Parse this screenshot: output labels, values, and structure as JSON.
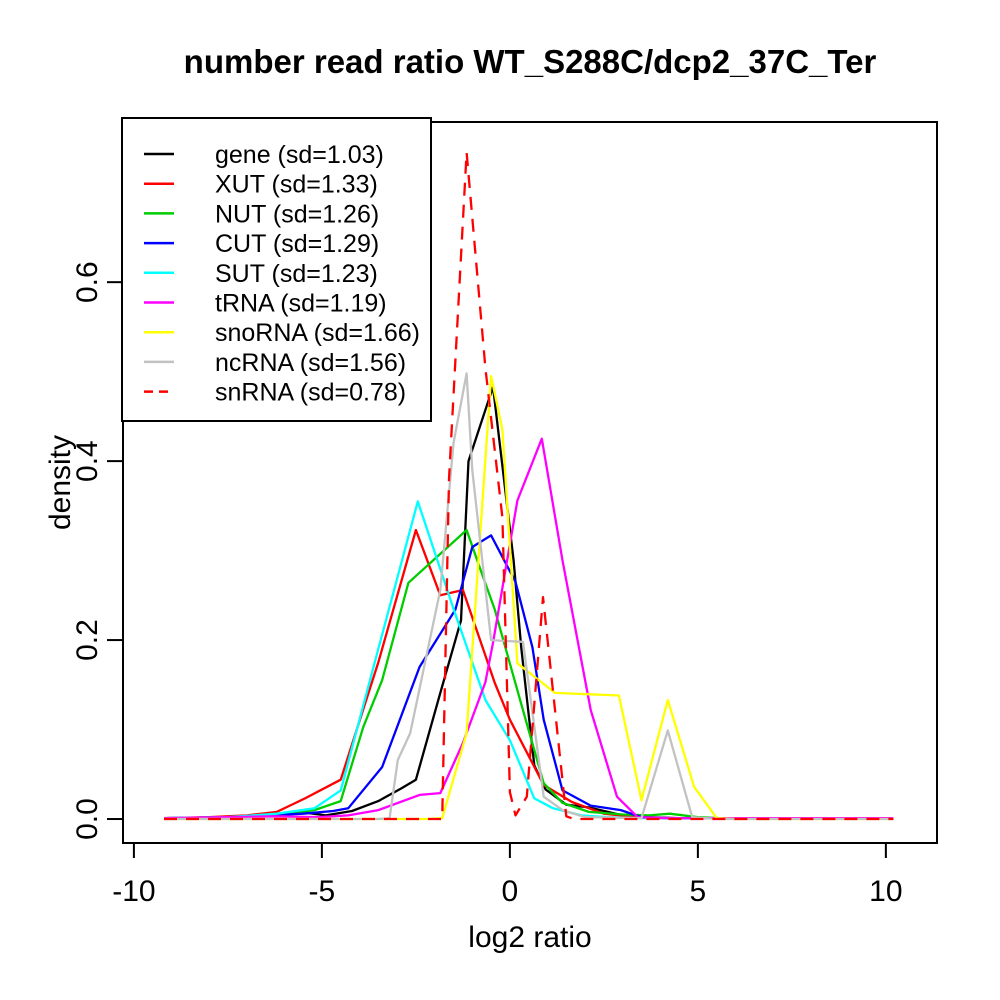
{
  "figure": {
    "background": "#ffffff",
    "border_color": "#000000"
  },
  "chart_data": {
    "type": "line",
    "title": "number read ratio WT_S288C/dcp2_37C_Ter",
    "xlabel": "log2 ratio",
    "ylabel": "density",
    "xlim": [
      -10.29,
      11.36
    ],
    "ylim": [
      -0.0268,
      0.779
    ],
    "x_ticks": [
      -10,
      -5,
      0,
      5,
      10
    ],
    "x_tick_labels": [
      "-10",
      "-5",
      "0",
      "5",
      "10"
    ],
    "y_ticks": [
      0.0,
      0.2,
      0.4,
      0.6
    ],
    "y_tick_labels": [
      "0.0",
      "0.2",
      "0.4",
      "0.6"
    ],
    "grid": false,
    "legend_position": "top-left",
    "series": [
      {
        "name": "gene",
        "label": "gene (sd=1.03)",
        "color": "#000000",
        "dashed": false,
        "points": [
          [
            -9.2,
            0.001
          ],
          [
            -8.2,
            0.001
          ],
          [
            -7.2,
            0.003
          ],
          [
            -6.2,
            0.005
          ],
          [
            -5.4,
            0.007
          ],
          [
            -4.9,
            0.004
          ],
          [
            -4.2,
            0.009
          ],
          [
            -3.5,
            0.02
          ],
          [
            -2.9,
            0.034
          ],
          [
            -2.5,
            0.044
          ],
          [
            -1.85,
            0.141
          ],
          [
            -1.3,
            0.222
          ],
          [
            -1.1,
            0.4
          ],
          [
            -0.45,
            0.483
          ],
          [
            0.1,
            0.289
          ],
          [
            0.3,
            0.192
          ],
          [
            0.65,
            0.06
          ],
          [
            0.95,
            0.033
          ],
          [
            1.5,
            0.016
          ],
          [
            2.1,
            0.013
          ],
          [
            2.9,
            0.005
          ],
          [
            3.6,
            0.002
          ],
          [
            4.5,
            0.001
          ],
          [
            10.2,
            0.001
          ]
        ]
      },
      {
        "name": "XUT",
        "label": "XUT (sd=1.33)",
        "color": "#FF0000",
        "dashed": false,
        "points": [
          [
            -9.2,
            0.001
          ],
          [
            -8,
            0.002
          ],
          [
            -7,
            0.004
          ],
          [
            -6.2,
            0.008
          ],
          [
            -5.45,
            0.023
          ],
          [
            -4.5,
            0.044
          ],
          [
            -3.5,
            0.175
          ],
          [
            -2.5,
            0.323
          ],
          [
            -1.85,
            0.25
          ],
          [
            -1.25,
            0.256
          ],
          [
            -0.4,
            0.152
          ],
          [
            0,
            0.111
          ],
          [
            0.9,
            0.038
          ],
          [
            1.65,
            0.019
          ],
          [
            2.5,
            0.006
          ],
          [
            3.2,
            0.003
          ],
          [
            4,
            0.001
          ],
          [
            10.2,
            0.001
          ]
        ]
      },
      {
        "name": "NUT",
        "label": "NUT (sd=1.26)",
        "color": "#00CD00",
        "dashed": false,
        "points": [
          [
            -9.2,
            0.001
          ],
          [
            -7.5,
            0.002
          ],
          [
            -6.3,
            0.004
          ],
          [
            -5.2,
            0.01
          ],
          [
            -4.5,
            0.02
          ],
          [
            -3.9,
            0.103
          ],
          [
            -3.4,
            0.155
          ],
          [
            -2.7,
            0.264
          ],
          [
            -1.15,
            0.323
          ],
          [
            -0.75,
            0.275
          ],
          [
            -0.4,
            0.234
          ],
          [
            0.1,
            0.159
          ],
          [
            0.5,
            0.099
          ],
          [
            0.9,
            0.04
          ],
          [
            1.4,
            0.018
          ],
          [
            2.1,
            0.008
          ],
          [
            3,
            0.005
          ],
          [
            3.7,
            0.004
          ],
          [
            4.25,
            0.006
          ],
          [
            5,
            0.002
          ],
          [
            5.6,
            0.001
          ],
          [
            10.2,
            0.001
          ]
        ]
      },
      {
        "name": "CUT",
        "label": "CUT (sd=1.29)",
        "color": "#0000FF",
        "dashed": false,
        "points": [
          [
            -9.2,
            0.001
          ],
          [
            -7.5,
            0.002
          ],
          [
            -6.5,
            0.004
          ],
          [
            -5.5,
            0.006
          ],
          [
            -4.7,
            0.009
          ],
          [
            -4.3,
            0.012
          ],
          [
            -3.4,
            0.058
          ],
          [
            -2.4,
            0.17
          ],
          [
            -1.45,
            0.234
          ],
          [
            -1,
            0.304
          ],
          [
            -0.5,
            0.317
          ],
          [
            0.15,
            0.265
          ],
          [
            0.6,
            0.192
          ],
          [
            0.9,
            0.111
          ],
          [
            1.4,
            0.032
          ],
          [
            2.15,
            0.015
          ],
          [
            2.95,
            0.01
          ],
          [
            3.5,
            0.002
          ],
          [
            4.2,
            0.001
          ],
          [
            10.2,
            0.001
          ]
        ]
      },
      {
        "name": "SUT",
        "label": "SUT (sd=1.23)",
        "color": "#00FFFF",
        "dashed": false,
        "points": [
          [
            -9.2,
            0.001
          ],
          [
            -7.5,
            0.002
          ],
          [
            -6.2,
            0.006
          ],
          [
            -5.2,
            0.012
          ],
          [
            -4.5,
            0.032
          ],
          [
            -3.5,
            0.19
          ],
          [
            -2.45,
            0.355
          ],
          [
            -1.5,
            0.235
          ],
          [
            -0.65,
            0.133
          ],
          [
            0,
            0.088
          ],
          [
            0.65,
            0.023
          ],
          [
            1.15,
            0.012
          ],
          [
            1.9,
            0.004
          ],
          [
            2.6,
            0.002
          ],
          [
            3.4,
            0.001
          ],
          [
            10.2,
            0.001
          ]
        ]
      },
      {
        "name": "tRNA",
        "label": "tRNA (sd=1.19)",
        "color": "#FF00FF",
        "dashed": false,
        "points": [
          [
            -9.2,
            0.001
          ],
          [
            -7.5,
            0.002
          ],
          [
            -6.3,
            0.003
          ],
          [
            -5.1,
            0.002
          ],
          [
            -4.3,
            0.004
          ],
          [
            -3.5,
            0.01
          ],
          [
            -2.4,
            0.027
          ],
          [
            -1.85,
            0.029
          ],
          [
            -1.25,
            0.085
          ],
          [
            -0.65,
            0.153
          ],
          [
            -0.45,
            0.197
          ],
          [
            0.2,
            0.356
          ],
          [
            0.85,
            0.425
          ],
          [
            1.4,
            0.289
          ],
          [
            2.15,
            0.122
          ],
          [
            2.85,
            0.025
          ],
          [
            3.4,
            0.002
          ],
          [
            4.2,
            0.001
          ],
          [
            10.2,
            0.001
          ]
        ]
      },
      {
        "name": "snoRNA",
        "label": "snoRNA (sd=1.66)",
        "color": "#FFFF00",
        "dashed": false,
        "points": [
          [
            -9.2,
            0
          ],
          [
            -2.2,
            0
          ],
          [
            -1.8,
            0.001
          ],
          [
            -1.15,
            0.096
          ],
          [
            -0.5,
            0.495
          ],
          [
            -0.2,
            0.435
          ],
          [
            0.2,
            0.174
          ],
          [
            1.2,
            0.141
          ],
          [
            2.9,
            0.138
          ],
          [
            3.5,
            0.021
          ],
          [
            4.2,
            0.133
          ],
          [
            4.9,
            0.036
          ],
          [
            5.5,
            0.001
          ],
          [
            6,
            0
          ],
          [
            10.2,
            0
          ]
        ]
      },
      {
        "name": "ncRNA",
        "label": "ncRNA (sd=1.56)",
        "color": "#C2C2C2",
        "dashed": false,
        "points": [
          [
            -9.2,
            0
          ],
          [
            -3.5,
            0
          ],
          [
            -3.2,
            0.001
          ],
          [
            -2.98,
            0.066
          ],
          [
            -2.65,
            0.096
          ],
          [
            -1.85,
            0.256
          ],
          [
            -1.5,
            0.42
          ],
          [
            -1.15,
            0.498
          ],
          [
            -1,
            0.39
          ],
          [
            -0.5,
            0.2
          ],
          [
            0.35,
            0.198
          ],
          [
            0.9,
            0.025
          ],
          [
            1.4,
            0.01
          ],
          [
            2,
            0.002
          ],
          [
            3.5,
            0.001
          ],
          [
            4.2,
            0.099
          ],
          [
            4.85,
            0.002
          ],
          [
            5.5,
            0
          ],
          [
            10.2,
            0
          ]
        ]
      },
      {
        "name": "snRNA",
        "label": "snRNA (sd=0.78)",
        "color": "#FF0000",
        "dashed": true,
        "points": [
          [
            -9.2,
            0
          ],
          [
            -1.8,
            0
          ],
          [
            -1.62,
            0.38
          ],
          [
            -1.15,
            0.745
          ],
          [
            -0.65,
            0.504
          ],
          [
            -0.2,
            0.337
          ],
          [
            0,
            0.03
          ],
          [
            0.15,
            0.004
          ],
          [
            0.45,
            0.025
          ],
          [
            0.88,
            0.248
          ],
          [
            1.5,
            0.003
          ],
          [
            1.7,
            0
          ],
          [
            10.2,
            0
          ]
        ]
      }
    ]
  }
}
